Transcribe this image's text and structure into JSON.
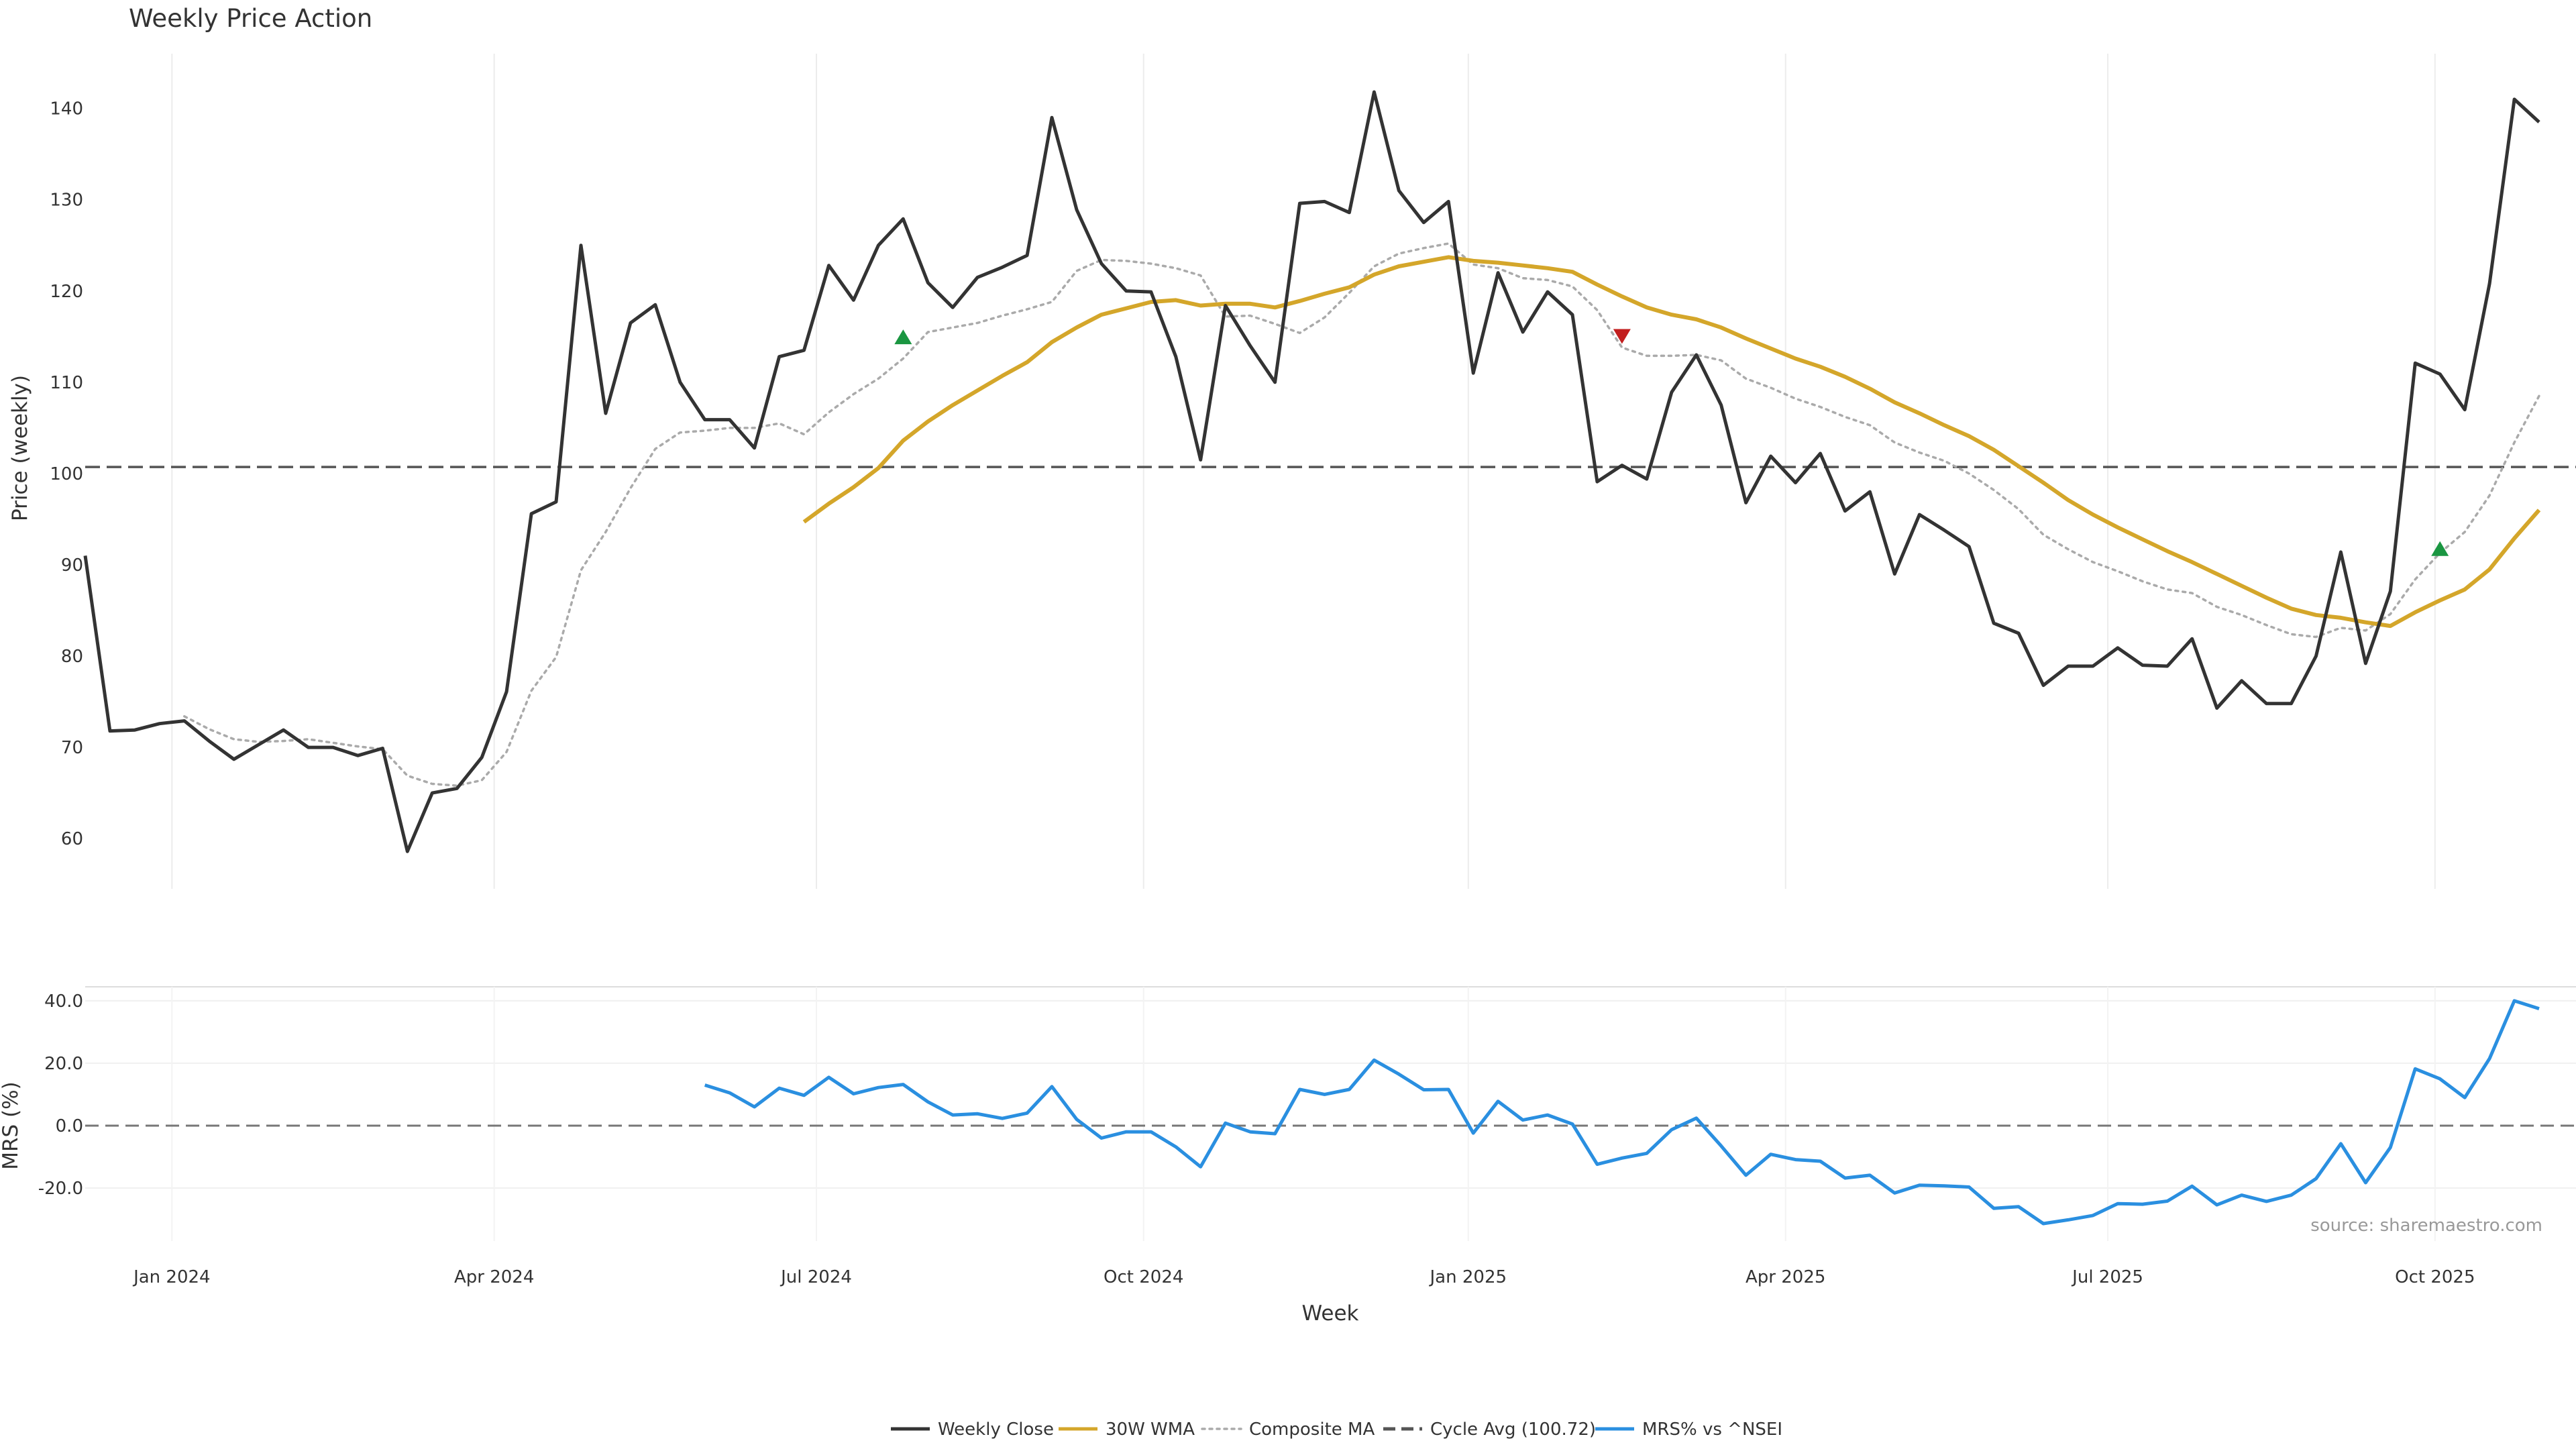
{
  "chart_data": {
    "title": "Weekly Price Action",
    "x_label": "Week",
    "x_ticks": [
      "Jan 2024",
      "Apr 2024",
      "Jul 2024",
      "Oct 2024",
      "Jan 2025",
      "Apr 2025",
      "Jul 2025",
      "Oct 2025"
    ],
    "source": "source: sharemaestro.com",
    "grid": "vertical",
    "legend_position": "bottom",
    "price_panel": {
      "type": "line",
      "ylabel": "Price (weekly)",
      "ylim": [
        54.5,
        146
      ],
      "yticks": [
        60,
        70,
        80,
        90,
        100,
        110,
        120,
        130,
        140
      ],
      "cycle_avg": 100.72,
      "series": [
        {
          "name": "Weekly Close",
          "color": "#333333",
          "style": "solid",
          "values": [
            91.0,
            71.8,
            71.9,
            72.6,
            72.9,
            70.7,
            68.7,
            70.3,
            71.9,
            70.0,
            70.0,
            69.1,
            69.9,
            58.6,
            65.0,
            65.5,
            68.9,
            76.1,
            95.6,
            96.9,
            125.0,
            106.6,
            116.5,
            118.5,
            110.0,
            105.9,
            105.9,
            102.8,
            112.8,
            113.5,
            122.8,
            119.0,
            125.0,
            127.9,
            120.9,
            118.2,
            121.5,
            122.6,
            123.9,
            139.0,
            128.9,
            123.0,
            120.0,
            119.9,
            112.8,
            101.5,
            118.4,
            114.0,
            110.0,
            129.6,
            129.8,
            128.6,
            141.8,
            131.0,
            127.5,
            129.8,
            111.0,
            122.0,
            115.5,
            119.9,
            117.4,
            99.1,
            100.9,
            99.4,
            108.9,
            113.0,
            107.5,
            96.8,
            101.9,
            99.0,
            102.2,
            95.9,
            98.0,
            89.0,
            95.5,
            93.8,
            92.0,
            83.6,
            82.5,
            76.8,
            78.9,
            78.9,
            80.9,
            79.0,
            78.9,
            81.9,
            74.3,
            77.3,
            74.8,
            74.8,
            80.0,
            91.4,
            79.2,
            87.1,
            112.1,
            110.9,
            107.0,
            120.8,
            141.0,
            138.5
          ]
        },
        {
          "name": "30W WMA",
          "color": "#D4A62A",
          "style": "solid",
          "values": [
            null,
            null,
            null,
            null,
            null,
            null,
            null,
            null,
            null,
            null,
            null,
            null,
            null,
            null,
            null,
            null,
            null,
            null,
            null,
            null,
            null,
            null,
            null,
            null,
            null,
            null,
            null,
            null,
            null,
            94.7,
            96.7,
            98.5,
            100.6,
            103.6,
            105.7,
            107.5,
            109.1,
            110.7,
            112.2,
            114.4,
            116.0,
            117.4,
            118.1,
            118.8,
            119.0,
            118.4,
            118.6,
            118.6,
            118.2,
            118.9,
            119.7,
            120.4,
            121.8,
            122.7,
            123.2,
            123.7,
            123.3,
            123.1,
            122.8,
            122.5,
            122.1,
            120.7,
            119.4,
            118.2,
            117.4,
            116.9,
            116.0,
            114.8,
            113.7,
            112.6,
            111.7,
            110.6,
            109.3,
            107.8,
            106.6,
            105.3,
            104.1,
            102.6,
            100.8,
            99.0,
            97.1,
            95.5,
            94.1,
            92.8,
            91.5,
            90.3,
            89.0,
            87.7,
            86.4,
            85.2,
            84.5,
            84.2,
            83.7,
            83.3,
            84.8,
            86.1,
            87.3,
            89.5,
            92.9,
            96.0
          ]
        },
        {
          "name": "Composite MA",
          "color": "#AAAAAA",
          "style": "dotted",
          "values": [
            null,
            null,
            null,
            null,
            73.4,
            72.0,
            70.9,
            70.6,
            70.7,
            70.9,
            70.5,
            70.1,
            69.8,
            66.9,
            66.0,
            65.8,
            66.4,
            69.5,
            76.2,
            79.9,
            89.4,
            93.6,
            98.4,
            102.7,
            104.5,
            104.7,
            105.0,
            105.0,
            105.5,
            104.3,
            106.7,
            108.7,
            110.4,
            112.6,
            115.5,
            116.0,
            116.5,
            117.3,
            118.0,
            118.8,
            122.2,
            123.4,
            123.3,
            123.0,
            122.5,
            121.7,
            117.2,
            117.3,
            116.4,
            115.4,
            117.1,
            119.8,
            122.7,
            124.1,
            124.7,
            125.2,
            122.9,
            122.5,
            121.4,
            121.2,
            120.5,
            117.9,
            113.8,
            112.9,
            112.9,
            113.0,
            112.4,
            110.4,
            109.4,
            108.2,
            107.3,
            106.2,
            105.3,
            103.4,
            102.3,
            101.4,
            100.0,
            98.2,
            96.1,
            93.3,
            91.7,
            90.3,
            89.3,
            88.2,
            87.3,
            86.9,
            85.4,
            84.5,
            83.4,
            82.4,
            82.1,
            83.1,
            82.8,
            84.6,
            88.4,
            91.3,
            93.6,
            97.6,
            103.4,
            108.5
          ]
        }
      ],
      "markers": [
        {
          "direction": "up",
          "color": "#1A9641",
          "week": 33,
          "value": 114.9
        },
        {
          "direction": "down",
          "color": "#C21E1E",
          "week": 62,
          "value": 115.1
        },
        {
          "direction": "up",
          "color": "#1A9641",
          "week": 95,
          "value": 91.7
        }
      ]
    },
    "mrs_panel": {
      "type": "line",
      "ylabel": "MRS (%)",
      "ylim": [
        -37,
        44.5
      ],
      "yticks": [
        40.0,
        20.0,
        0.0,
        -20.0
      ],
      "zero_line": 0.0,
      "series": [
        {
          "name": "MRS% vs ^NSEI",
          "color": "#2A8FE0",
          "style": "solid",
          "values": [
            null,
            null,
            null,
            null,
            null,
            null,
            null,
            null,
            null,
            null,
            null,
            null,
            null,
            null,
            null,
            null,
            null,
            null,
            null,
            null,
            null,
            null,
            null,
            null,
            null,
            13.0,
            10.5,
            6.0,
            12.0,
            9.7,
            15.5,
            10.2,
            12.2,
            13.2,
            7.6,
            3.4,
            3.8,
            2.3,
            4.0,
            12.5,
            2.0,
            -4.0,
            -2.0,
            -2.0,
            -6.8,
            -13.2,
            0.8,
            -2.0,
            -2.6,
            11.6,
            10.0,
            11.6,
            21.0,
            16.5,
            11.5,
            11.6,
            -2.4,
            7.8,
            1.8,
            3.4,
            0.5,
            -12.4,
            -10.4,
            -8.9,
            -1.3,
            2.4,
            -6.5,
            -15.9,
            -9.2,
            -10.9,
            -11.4,
            -16.8,
            -15.9,
            -21.6,
            -19.1,
            -19.3,
            -19.7,
            -26.5,
            -26.0,
            -31.4,
            -30.2,
            -28.8,
            -25.0,
            -25.2,
            -24.2,
            -19.4,
            -25.4,
            -22.3,
            -24.3,
            -22.3,
            -17.0,
            -5.8,
            -18.3,
            -7.0,
            18.2,
            15.0,
            9.0,
            21.5,
            40.0,
            37.5
          ]
        }
      ]
    }
  },
  "legend": [
    {
      "label": "Weekly Close",
      "color": "#333333",
      "style": "solid"
    },
    {
      "label": "30W WMA",
      "color": "#D4A62A",
      "style": "solid"
    },
    {
      "label": "Composite MA",
      "color": "#AAAAAA",
      "style": "dotted"
    },
    {
      "label": "Cycle Avg (100.72)",
      "color": "#555555",
      "style": "dashed"
    },
    {
      "label": "MRS% vs ^NSEI",
      "color": "#2A8FE0",
      "style": "solid"
    }
  ]
}
